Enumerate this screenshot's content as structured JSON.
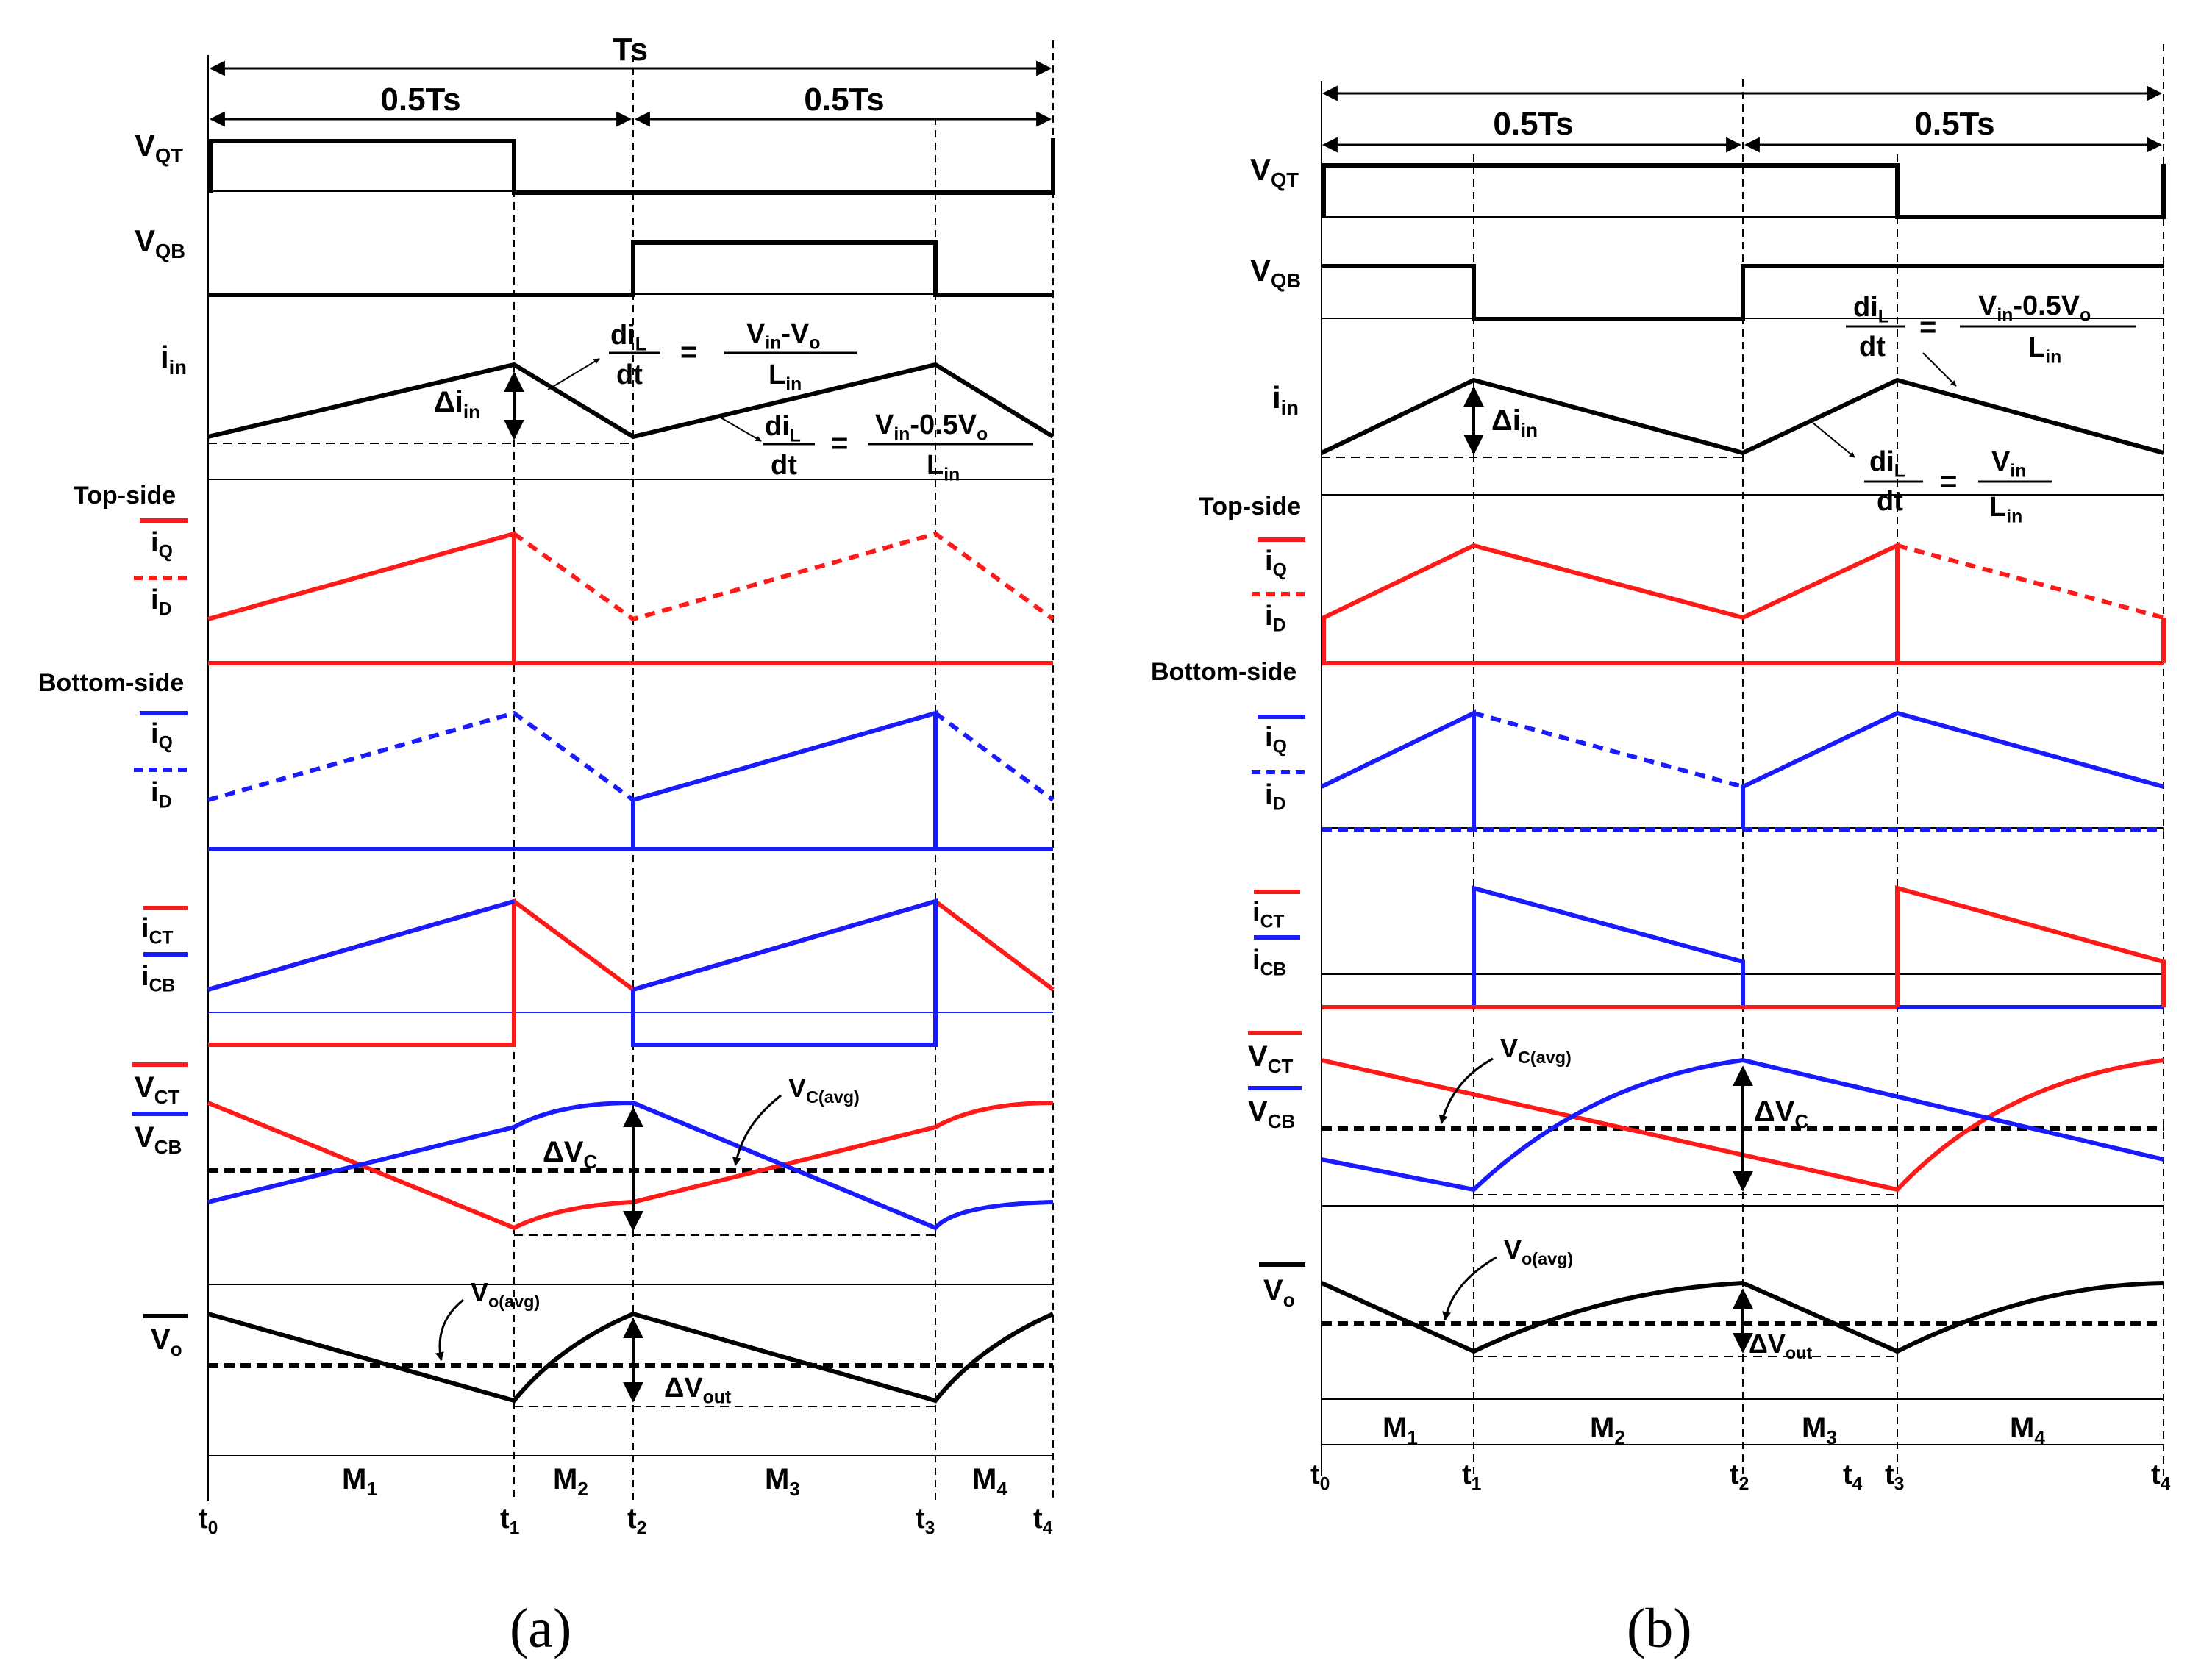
{
  "panel_a": {
    "caption": "(a)",
    "period": "Ts",
    "half_left": "0.5Ts",
    "half_right": "0.5Ts",
    "rows": {
      "vqt": "V_QT",
      "vqb": "V_QB",
      "iin": "i_in",
      "top_side": "Top-side",
      "bottom_side": "Bottom-side",
      "iq": "i_Q",
      "id": "i_D",
      "ict": "i_CT",
      "icb": "i_CB",
      "vct": "V_CT",
      "vcb": "V_CB",
      "vo": "V_o"
    },
    "annotations": {
      "delta_iin": "Δi_in",
      "delta_vc": "ΔV_C",
      "vc_avg": "V_C(avg)",
      "vo_avg": "V_o(avg)",
      "delta_vout": "ΔV_out",
      "eq1_lhs_num": "di_L",
      "eq1_lhs_den": "dt",
      "eq1_rhs_num": "V_in-V_o",
      "eq1_rhs_den": "L_in",
      "eq2_lhs_num": "di_L",
      "eq2_lhs_den": "dt",
      "eq2_rhs_num": "V_in-0.5V_o",
      "eq2_rhs_den": "L_in",
      "equals": "="
    },
    "modes": [
      "M_1",
      "M_2",
      "M_3",
      "M_4"
    ],
    "times": [
      "t_0",
      "t_1",
      "t_2",
      "t_3",
      "t_4"
    ]
  },
  "panel_b": {
    "caption": "(b)",
    "half_left": "0.5Ts",
    "half_right": "0.5Ts",
    "rows": {
      "vqt": "V_QT",
      "vqb": "V_QB",
      "iin": "i_in",
      "top_side": "Top-side",
      "bottom_side": "Bottom-side",
      "iq": "i_Q",
      "id": "i_D",
      "ict": "i_CT",
      "icb": "i_CB",
      "vct": "V_CT",
      "vcb": "V_CB",
      "vo": "V_o"
    },
    "annotations": {
      "delta_iin": "Δi_in",
      "delta_vc": "ΔV_C",
      "vc_avg": "V_C(avg)",
      "vo_avg": "V_o(avg)",
      "delta_vout": "ΔV_out",
      "eq1_lhs_num": "di_L",
      "eq1_lhs_den": "dt",
      "eq1_rhs_num": "V_in-0.5V_o",
      "eq1_rhs_den": "L_in",
      "eq2_lhs_num": "di_L",
      "eq2_lhs_den": "dt",
      "eq2_rhs_num": "V_in",
      "eq2_rhs_den": "L_in",
      "equals": "="
    },
    "modes": [
      "M_1",
      "M_2",
      "M_3",
      "M_4"
    ],
    "times": [
      "t_0",
      "t_1",
      "t_2",
      "t_4",
      "t_3",
      "t_4"
    ]
  },
  "colors": {
    "top": "#ff1a1a",
    "bottom": "#1a1aff",
    "ink": "#000000"
  }
}
